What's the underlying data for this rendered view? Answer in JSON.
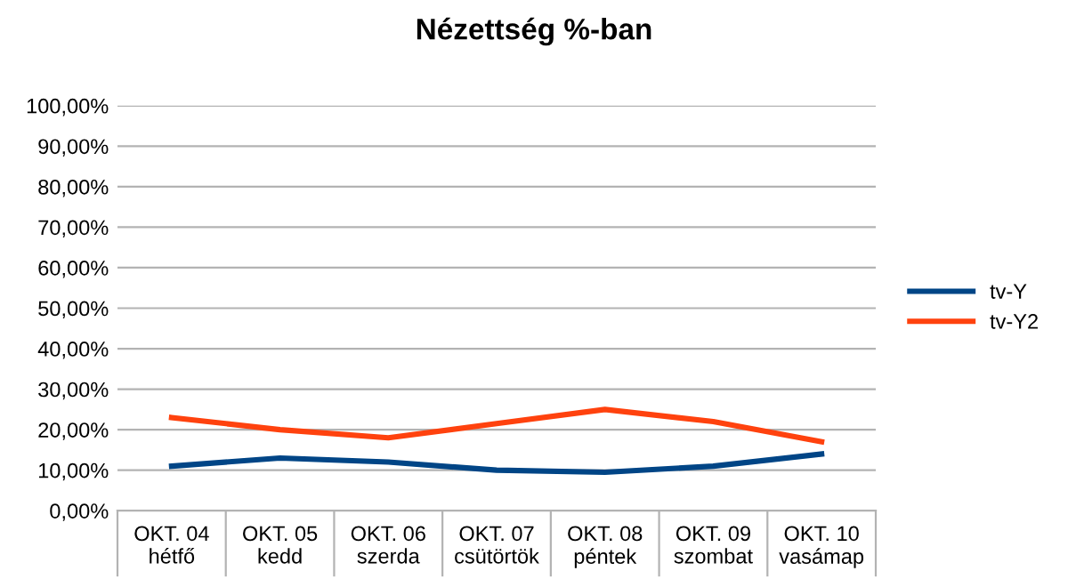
{
  "chart_data": {
    "type": "line",
    "title": "Nézettség %-ban",
    "categories": [
      "OKT. 04\nhétfő",
      "OKT. 05\nkedd",
      "OKT. 06\nszerda",
      "OKT. 07\ncsütörtök",
      "OKT. 08\npéntek",
      "OKT. 09\nszombat",
      "OKT. 10\nvasámap"
    ],
    "series": [
      {
        "name": "tv-Y",
        "color": "#004586",
        "values": [
          11,
          13,
          12,
          10,
          9.5,
          11,
          14
        ]
      },
      {
        "name": "tv-Y2",
        "color": "#ff420e",
        "values": [
          23,
          20,
          18,
          21.5,
          25,
          22,
          17
        ]
      }
    ],
    "ylim": [
      0,
      100
    ],
    "yticks": [
      {
        "value": 0,
        "label": "0,00%"
      },
      {
        "value": 10,
        "label": "10,00%"
      },
      {
        "value": 20,
        "label": "20,00%"
      },
      {
        "value": 30,
        "label": "30,00%"
      },
      {
        "value": 40,
        "label": "40,00%"
      },
      {
        "value": 50,
        "label": "50,00%"
      },
      {
        "value": 60,
        "label": "60,00%"
      },
      {
        "value": 70,
        "label": "70,00%"
      },
      {
        "value": 80,
        "label": "80,00%"
      },
      {
        "value": 90,
        "label": "90,00%"
      },
      {
        "value": 100,
        "label": "100,00%"
      }
    ],
    "grid": "y",
    "legend": "right",
    "marker": "none",
    "line_style": "solid"
  }
}
